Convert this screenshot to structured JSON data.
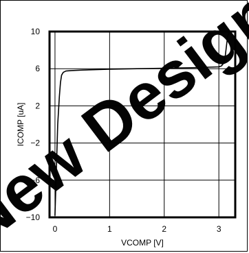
{
  "chart_data": {
    "type": "line",
    "title": "",
    "xlabel": "VCOMP [V]",
    "ylabel": "ICOMP [uA]",
    "xlim": [
      -0.1,
      3.3
    ],
    "ylim": [
      -10,
      10
    ],
    "xticks": [
      0,
      1,
      2,
      3
    ],
    "yticks": [
      -10,
      -6,
      -2,
      2,
      6,
      10
    ],
    "xtick_labels": [
      "0",
      "1",
      "2",
      "3"
    ],
    "ytick_labels": [
      "−10",
      "−6",
      "−2",
      "2",
      "6",
      "10"
    ],
    "grid": true,
    "colors": {
      "line": "#000000",
      "grid": "#000000",
      "watermark": "#000000"
    },
    "series": [
      {
        "x": [
          0.0,
          0.02,
          0.05,
          0.08,
          0.1,
          0.12,
          0.15,
          0.2,
          0.3,
          0.5,
          1.0,
          1.5,
          2.0,
          2.5,
          3.0,
          3.05,
          3.1,
          3.12,
          3.14,
          3.16,
          3.2
        ],
        "y": [
          -9.8,
          -6.0,
          0.0,
          3.0,
          4.5,
          5.3,
          5.6,
          5.75,
          5.8,
          5.85,
          5.95,
          6.0,
          6.05,
          6.1,
          6.2,
          6.3,
          6.7,
          7.5,
          8.5,
          9.5,
          10.0
        ]
      }
    ]
  },
  "watermark": {
    "text": "New Design"
  }
}
